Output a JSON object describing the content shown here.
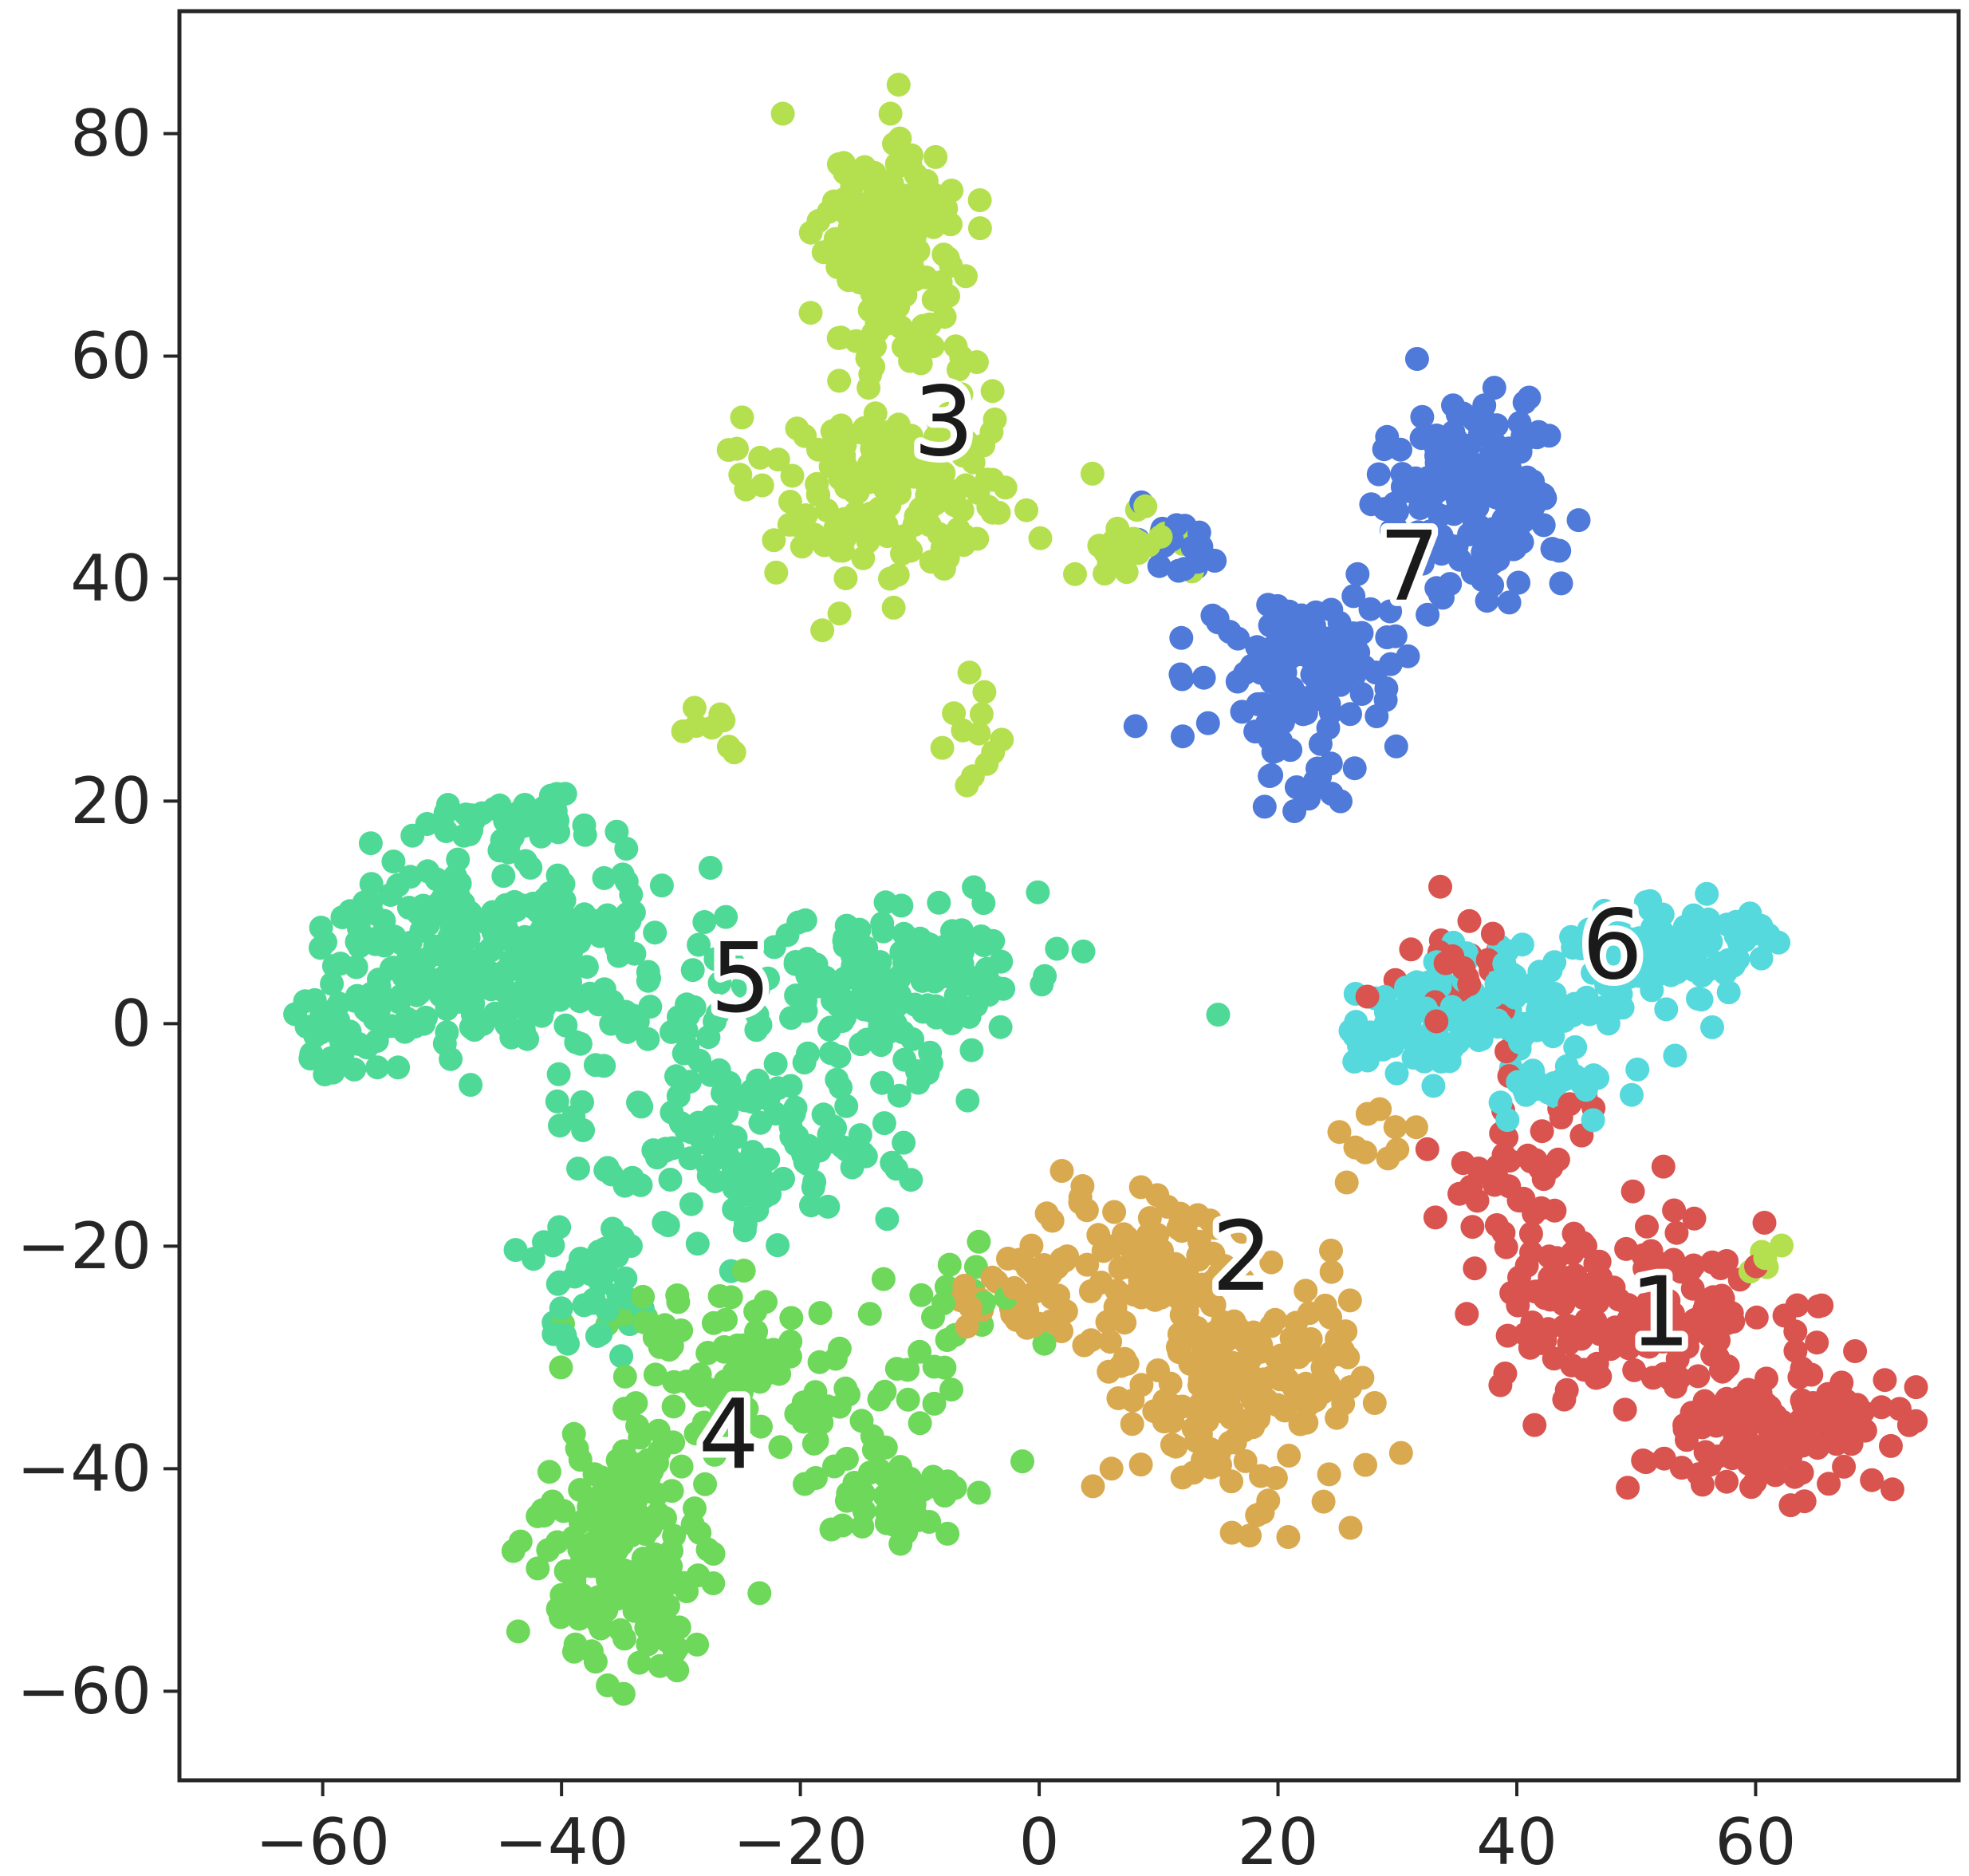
{
  "chart_data": {
    "type": "scatter",
    "title": "",
    "xlabel": "",
    "ylabel": "",
    "xlim": [
      -72,
      77
    ],
    "ylim": [
      -68,
      91
    ],
    "x_ticks": [
      -60,
      -40,
      -20,
      0,
      20,
      40,
      60
    ],
    "y_ticks": [
      -60,
      -40,
      -20,
      0,
      20,
      40,
      60,
      80
    ],
    "x_tick_labels": [
      "−60",
      "−40",
      "−20",
      "0",
      "20",
      "40",
      "60"
    ],
    "y_tick_labels": [
      "−60",
      "−40",
      "−20",
      "0",
      "20",
      "40",
      "60",
      "80"
    ],
    "grid": false,
    "legend": "none",
    "clusters": [
      {
        "label": "1",
        "color": "#d9534f",
        "label_pos": [
          52,
          -26
        ],
        "blobs": [
          [
            50,
            -26,
            9,
            6,
            160
          ],
          [
            62,
            -36,
            8,
            4,
            140
          ],
          [
            40,
            -14,
            4,
            8,
            50
          ],
          [
            35,
            4,
            5,
            4,
            25
          ]
        ]
      },
      {
        "label": "2",
        "color": "#d9a94f",
        "label_pos": [
          17,
          -21
        ],
        "blobs": [
          [
            17,
            -33,
            7,
            8,
            190
          ],
          [
            8,
            -22,
            7,
            5,
            90
          ],
          [
            -2,
            -24,
            4,
            3,
            25
          ],
          [
            28,
            -10,
            3,
            4,
            10
          ]
        ]
      },
      {
        "label": "3",
        "color": "#b4e050",
        "label_pos": [
          -8,
          54
        ],
        "blobs": [
          [
            -12,
            70,
            4,
            8,
            170
          ],
          [
            -13,
            48,
            7,
            6,
            170
          ],
          [
            8,
            43,
            4,
            2,
            25
          ],
          [
            -6,
            26,
            2,
            4,
            12
          ],
          [
            -27,
            26,
            3,
            2,
            8
          ],
          [
            60,
            -20,
            2,
            2,
            5
          ]
        ]
      },
      {
        "label": "4",
        "color": "#6dd85a",
        "label_pos": [
          -26,
          -37
        ],
        "blobs": [
          [
            -35,
            -48,
            5,
            8,
            170
          ],
          [
            -25,
            -32,
            7,
            6,
            110
          ],
          [
            -12,
            -42,
            4,
            3,
            50
          ],
          [
            -8,
            -28,
            5,
            6,
            25
          ]
        ]
      },
      {
        "label": "5",
        "color": "#4fd996",
        "label_pos": [
          -25,
          4
        ],
        "blobs": [
          [
            -45,
            6,
            11,
            6,
            290
          ],
          [
            -25,
            -10,
            9,
            6,
            150
          ],
          [
            -12,
            4,
            9,
            5,
            170
          ],
          [
            -38,
            -24,
            4,
            4,
            45
          ],
          [
            -45,
            18,
            5,
            2,
            40
          ],
          [
            -58,
            0,
            3,
            3,
            35
          ]
        ]
      },
      {
        "label": "6",
        "color": "#56d9dc",
        "label_pos": [
          48,
          7
        ],
        "blobs": [
          [
            53,
            7,
            6,
            3,
            120
          ],
          [
            40,
            2,
            8,
            4,
            110
          ],
          [
            30,
            -1,
            4,
            3,
            40
          ],
          [
            43,
            -6,
            4,
            2,
            25
          ]
        ]
      },
      {
        "label": "7",
        "color": "#4f7ad9",
        "label_pos": [
          31,
          41
        ],
        "blobs": [
          [
            36,
            47,
            5,
            6,
            170
          ],
          [
            22,
            32,
            6,
            5,
            120
          ],
          [
            12,
            43,
            3,
            2,
            20
          ],
          [
            23,
            21,
            3,
            2,
            15
          ]
        ]
      }
    ]
  }
}
